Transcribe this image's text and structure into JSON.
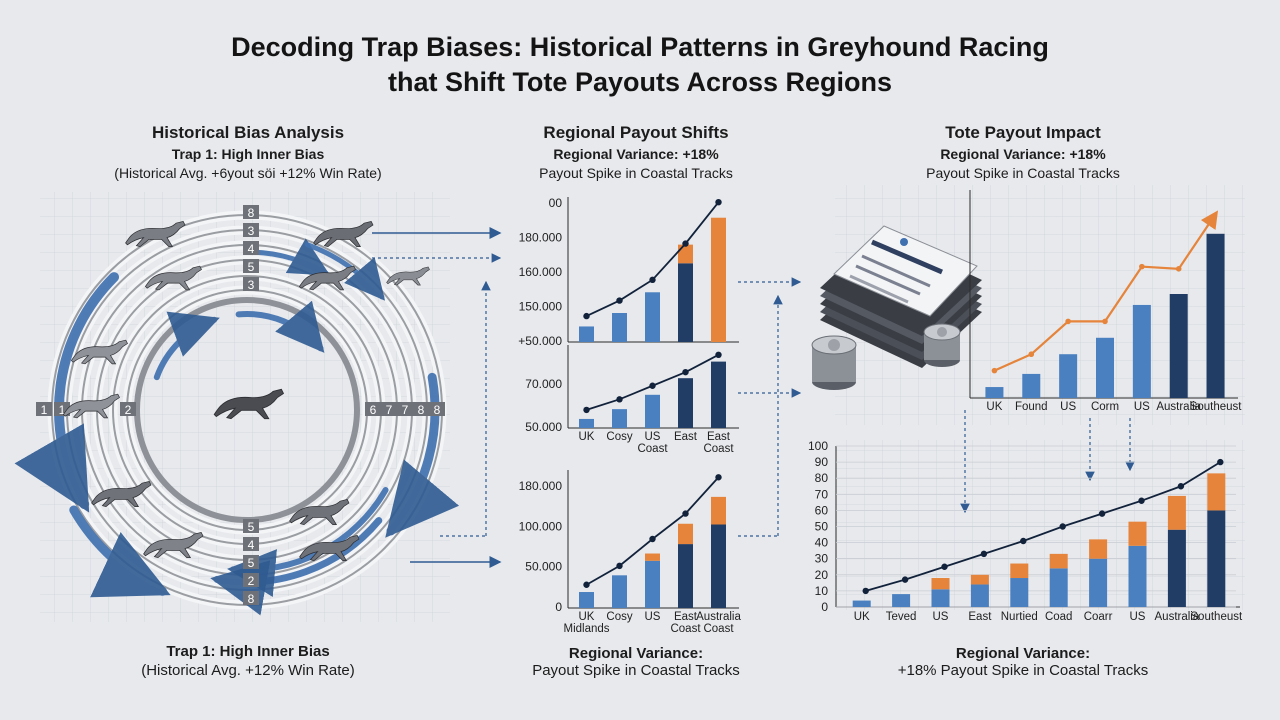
{
  "title": {
    "line1": "Decoding Trap Biases: Historical Patterns in Greyhound Racing",
    "line2": "that Shift Tote Payouts Across Regions"
  },
  "bias_panel": {
    "heading": "Historical Bias Analysis",
    "sub1": "Trap 1: High Inner Bias",
    "sub2": "(Historical Avg. +6yout söi +12% Win Rate)",
    "footer1": "Trap 1: High Inner Bias",
    "footer2": "(Historical Avg. +12% Win Rate)",
    "top_trap_labels": [
      "8",
      "3",
      "4",
      "5",
      "3"
    ],
    "bottom_trap_labels": [
      "5",
      "4",
      "5",
      "2",
      "8"
    ],
    "left_trap_labels": [
      "1",
      "1",
      "2"
    ],
    "right_trap_labels": [
      "6",
      "7",
      "7",
      "8",
      "8"
    ]
  },
  "regional_panel": {
    "heading": "Regional Payout Shifts",
    "sub1": "Regional Variance: +18%",
    "sub2": "Payout Spike in Coastal Tracks",
    "footer1": "Regional Variance:",
    "footer2": "Payout Spike in Coastal Tracks"
  },
  "tote_panel": {
    "heading": "Tote Payout Impact",
    "sub1": "Regional Variance: +18%",
    "sub2": "Payout Spike in Coastal Tracks",
    "footer1": "Regional Variance:",
    "footer2": "+18% Payout Spike in Coastal Tracks"
  },
  "colors": {
    "bar_blue": "#4a80c0",
    "bar_navy": "#213d66",
    "bar_orange": "#e5843a",
    "line_dark": "#12223b",
    "arrow_blue": "#3f70b0",
    "ring_gray": "#9a9da2"
  },
  "chart_data": [
    {
      "id": "regional-top",
      "type": "bar",
      "ytick_labels": [
        "00",
        "180.000",
        "160.000",
        "150.000",
        "+50.000"
      ],
      "categories": [
        "",
        "",
        "",
        "",
        ""
      ],
      "bars": [
        {
          "value": 15,
          "color": "blue"
        },
        {
          "value": 28,
          "color": "blue"
        },
        {
          "value": 48,
          "color": "blue"
        },
        {
          "value": 76,
          "color": "navy",
          "cap": 18,
          "cap_color": "orange"
        },
        {
          "value": 120,
          "color": "orange"
        }
      ],
      "line": [
        25,
        40,
        60,
        95,
        135
      ],
      "ylim": [
        0,
        140
      ]
    },
    {
      "id": "regional-mid",
      "type": "bar",
      "ytick_labels": [
        "70.000",
        "50.000"
      ],
      "categories": [
        "UK",
        "Cosy",
        "US Coast",
        "East",
        "East Coast"
      ],
      "bars": [
        {
          "value": 12,
          "color": "blue"
        },
        {
          "value": 25,
          "color": "blue"
        },
        {
          "value": 44,
          "color": "blue"
        },
        {
          "value": 66,
          "color": "navy"
        },
        {
          "value": 88,
          "color": "navy"
        }
      ],
      "line": [
        24,
        38,
        56,
        74,
        97
      ],
      "ylim": [
        0,
        110
      ]
    },
    {
      "id": "regional-bottom",
      "type": "bar",
      "ytick_labels": [
        "180.000",
        "100.000",
        "50.000",
        "0"
      ],
      "categories": [
        "UK Midlands",
        "Cosy",
        "US",
        "East Coast",
        "Australia Coast"
      ],
      "bars": [
        {
          "value": 22,
          "color": "blue"
        },
        {
          "value": 45,
          "color": "blue"
        },
        {
          "value": 65,
          "color": "blue",
          "cap": 10,
          "cap_color": "orange"
        },
        {
          "value": 88,
          "color": "navy",
          "cap": 28,
          "cap_color": "orange"
        },
        {
          "value": 115,
          "color": "navy",
          "cap": 38,
          "cap_color": "orange"
        }
      ],
      "line": [
        32,
        58,
        95,
        130,
        180
      ],
      "ylim": [
        0,
        190
      ]
    },
    {
      "id": "tote-top",
      "type": "bar",
      "categories": [
        "UK",
        "Found",
        "US",
        "Corm",
        "US",
        "Australia",
        "Southeust"
      ],
      "bars": [
        {
          "value": 10,
          "color": "blue"
        },
        {
          "value": 22,
          "color": "blue"
        },
        {
          "value": 40,
          "color": "blue"
        },
        {
          "value": 55,
          "color": "blue"
        },
        {
          "value": 85,
          "color": "blue"
        },
        {
          "value": 95,
          "color": "navy"
        },
        {
          "value": 150,
          "color": "navy"
        }
      ],
      "line": [
        25,
        40,
        70,
        70,
        120,
        118,
        168
      ],
      "ylim": [
        0,
        190
      ]
    },
    {
      "id": "tote-bottom",
      "type": "bar",
      "yticks": [
        0,
        10,
        20,
        30,
        40,
        50,
        60,
        70,
        80,
        90,
        100
      ],
      "ylim": [
        0,
        100
      ],
      "categories": [
        "UK",
        "Teved",
        "US",
        "East",
        "Nurtied",
        "Coad",
        "Coarr",
        "US",
        "Australia",
        "Southeust"
      ],
      "bars": [
        {
          "value": 4,
          "color": "blue"
        },
        {
          "value": 8,
          "color": "blue"
        },
        {
          "value": 11,
          "color": "blue",
          "cap": 7,
          "cap_color": "orange"
        },
        {
          "value": 14,
          "color": "blue",
          "cap": 6,
          "cap_color": "orange"
        },
        {
          "value": 18,
          "color": "blue",
          "cap": 9,
          "cap_color": "orange"
        },
        {
          "value": 24,
          "color": "blue",
          "cap": 9,
          "cap_color": "orange"
        },
        {
          "value": 30,
          "color": "blue",
          "cap": 12,
          "cap_color": "orange"
        },
        {
          "value": 38,
          "color": "blue",
          "cap": 15,
          "cap_color": "orange"
        },
        {
          "value": 48,
          "color": "navy",
          "cap": 21,
          "cap_color": "orange"
        },
        {
          "value": 60,
          "color": "navy",
          "cap": 23,
          "cap_color": "orange"
        }
      ],
      "line": [
        10,
        17,
        25,
        33,
        41,
        50,
        58,
        66,
        75,
        90
      ],
      "line_ends": {
        "start": 14,
        "end": 97
      }
    }
  ]
}
